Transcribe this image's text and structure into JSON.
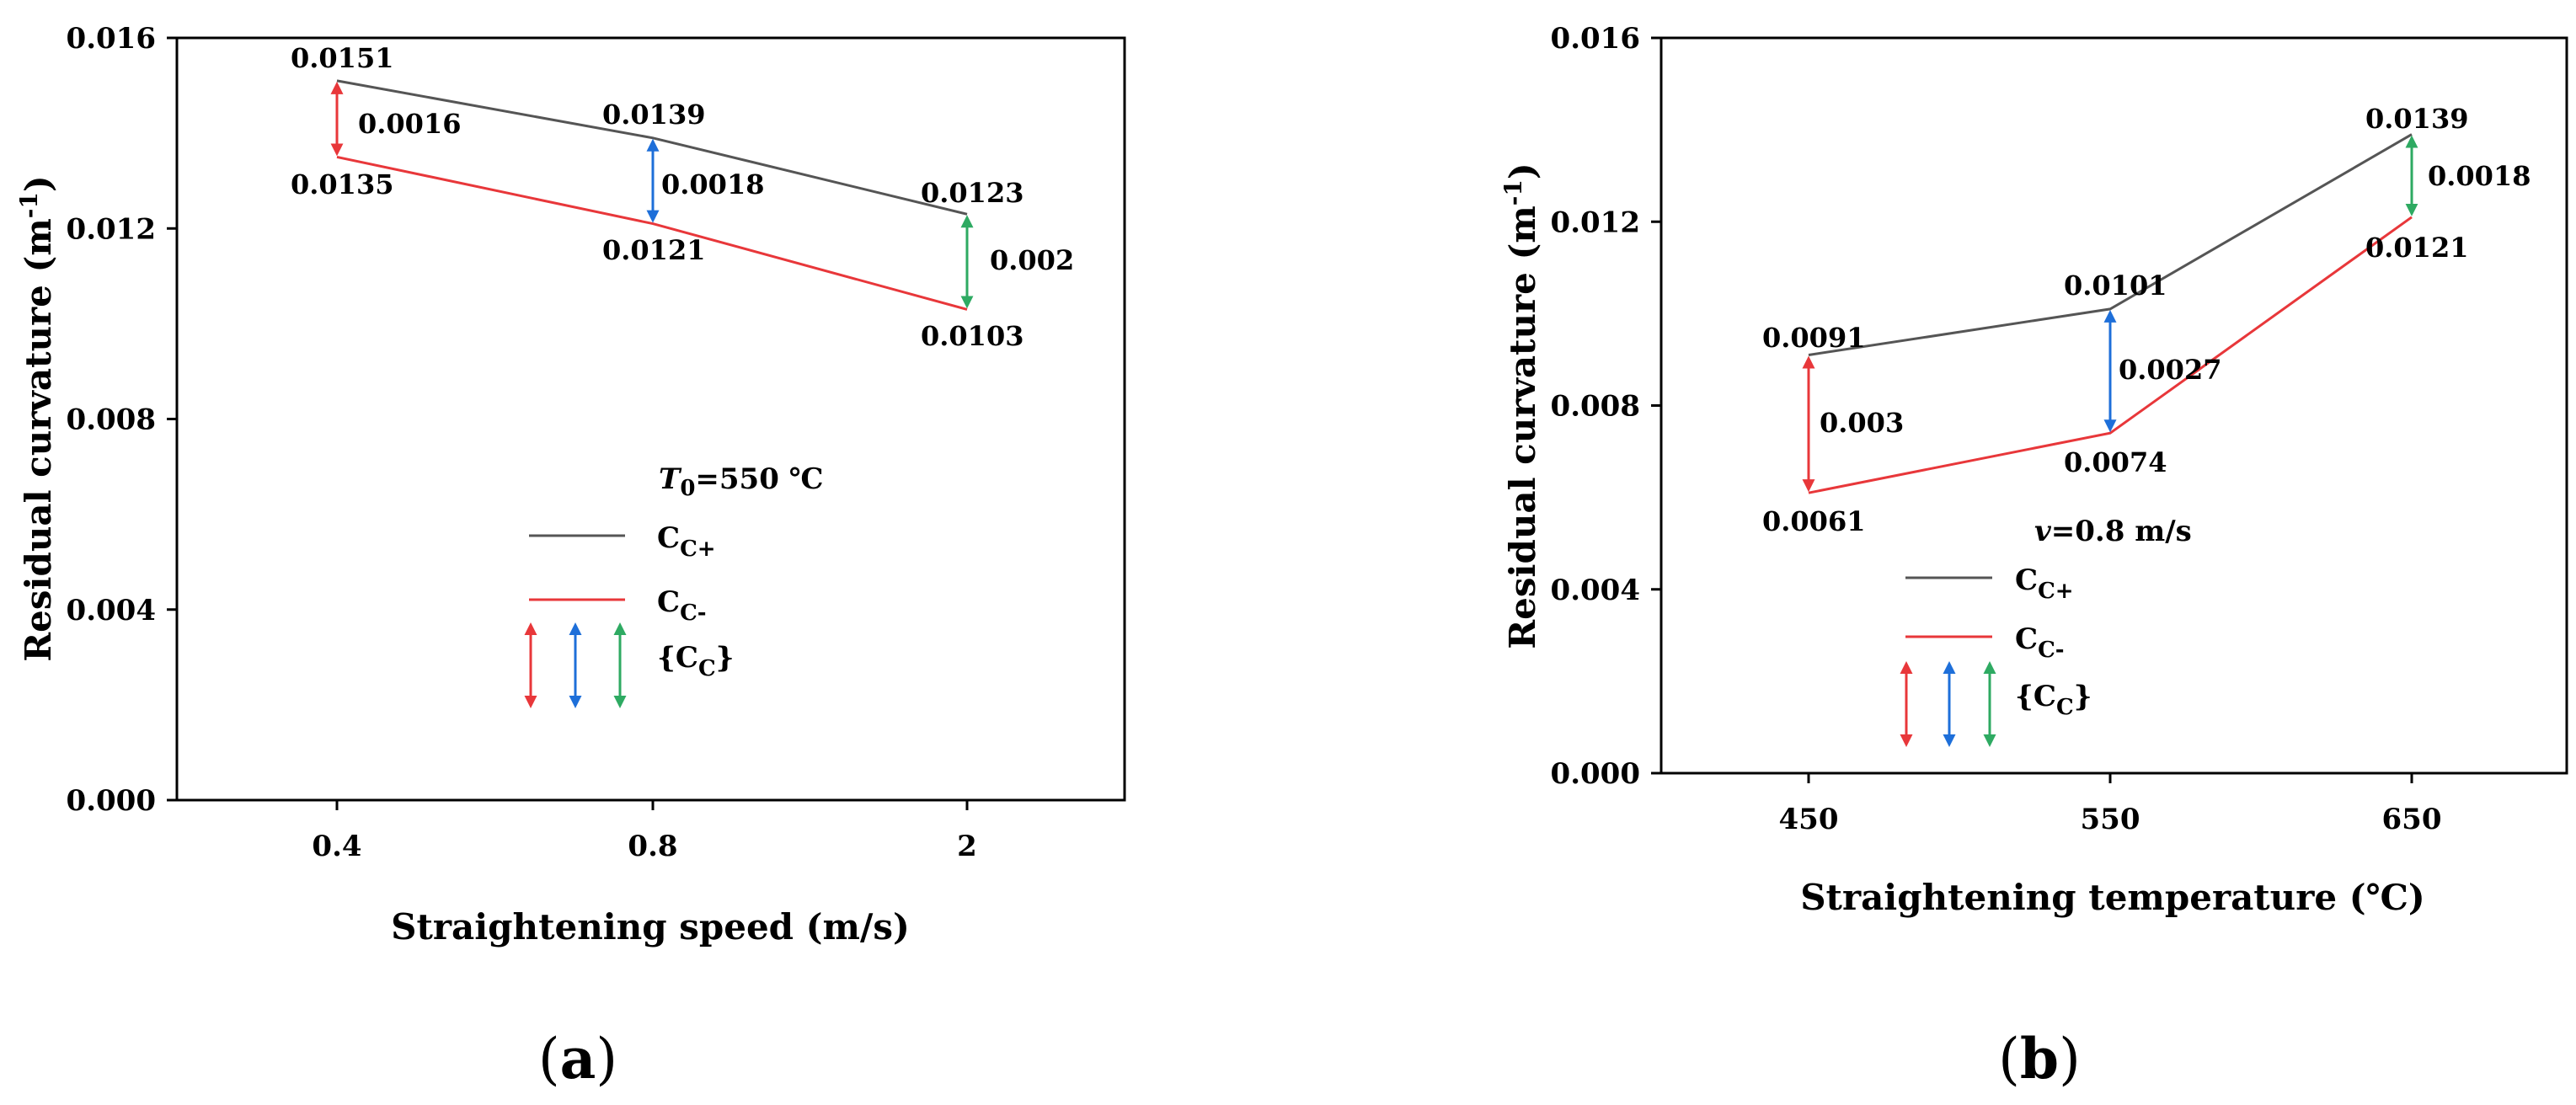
{
  "chart_data": [
    {
      "type": "line",
      "panel_label": "a",
      "xlabel": "Straightening speed (m/s)",
      "ylabel": "Residual curvature (m",
      "ylabel_sup": "-1",
      "ylim": [
        0,
        0.016
      ],
      "y_ticks": [
        "0.000",
        "0.004",
        "0.008",
        "0.012",
        "0.016"
      ],
      "y_tick_values": [
        0,
        0.004,
        0.008,
        0.012,
        0.016
      ],
      "categories": [
        "0.4",
        "0.8",
        "2"
      ],
      "series": [
        {
          "name": "C",
          "name_sub": "C+",
          "color": "#555555",
          "values": [
            0.0151,
            0.0139,
            0.0123
          ],
          "labels": [
            "0.0151",
            "0.0139",
            "0.0123"
          ]
        },
        {
          "name": "C",
          "name_sub": "C-",
          "color": "#e8373a",
          "values": [
            0.0135,
            0.0121,
            0.0103
          ],
          "labels": [
            "0.0135",
            "0.0121",
            "0.0103"
          ]
        }
      ],
      "differences": [
        {
          "label": "0.0016",
          "color": "#e8373a"
        },
        {
          "label": "0.0018",
          "color": "#1e6fd9"
        },
        {
          "label": "0.002",
          "color": "#2eaa62"
        }
      ],
      "condition_var": "T",
      "condition_sub": "0",
      "condition_value": "=550 ℃",
      "range_legend": "{C",
      "range_legend_sub": "C",
      "range_legend_close": "}"
    },
    {
      "type": "line",
      "panel_label": "b",
      "xlabel": "Straightening temperature (℃)",
      "ylabel": "Residual curvature (m",
      "ylabel_sup": "-1",
      "ylim": [
        0,
        0.016
      ],
      "y_ticks": [
        "0.000",
        "0.004",
        "0.008",
        "0.012",
        "0.016"
      ],
      "y_tick_values": [
        0,
        0.004,
        0.008,
        0.012,
        0.016
      ],
      "categories": [
        "450",
        "550",
        "650"
      ],
      "series": [
        {
          "name": "C",
          "name_sub": "C+",
          "color": "#555555",
          "values": [
            0.0091,
            0.0101,
            0.0139
          ],
          "labels": [
            "0.0091",
            "0.0101",
            "0.0139"
          ]
        },
        {
          "name": "C",
          "name_sub": "C-",
          "color": "#e8373a",
          "values": [
            0.0061,
            0.0074,
            0.0121
          ],
          "labels": [
            "0.0061",
            "0.0074",
            "0.0121"
          ]
        }
      ],
      "differences": [
        {
          "label": "0.003",
          "color": "#e8373a"
        },
        {
          "label": "0.0027",
          "color": "#1e6fd9"
        },
        {
          "label": "0.0018",
          "color": "#2eaa62"
        }
      ],
      "condition_var": "v",
      "condition_sub": "",
      "condition_value": "=0.8 m/s",
      "range_legend": "{C",
      "range_legend_sub": "C",
      "range_legend_close": "}"
    }
  ]
}
